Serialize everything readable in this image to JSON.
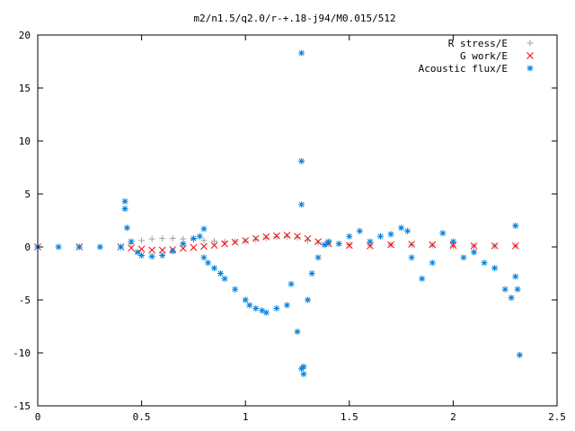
{
  "chart_data": {
    "type": "scatter",
    "title": "m2/n1.5/q2.0/r-+.18-j94/M0.015/512",
    "xlabel": "",
    "ylabel": "",
    "xlim": [
      0,
      2.5
    ],
    "ylim": [
      -15,
      20
    ],
    "xticks": [
      "0",
      "0.5",
      "1",
      "1.5",
      "2",
      "2.5"
    ],
    "yticks": [
      "-15",
      "-10",
      "-5",
      "0",
      "5",
      "10",
      "15",
      "20"
    ],
    "grid": false,
    "legend_position": "top-right",
    "series": [
      {
        "name": "R stress/E",
        "marker": "+",
        "color": "#a0a0a0",
        "x": [
          0.0,
          0.2,
          0.4,
          0.45,
          0.5,
          0.55,
          0.6,
          0.65,
          0.7,
          0.75,
          0.8,
          0.85,
          0.9,
          0.95,
          1.0,
          1.05,
          1.1,
          1.15,
          1.2,
          1.25,
          1.3,
          1.35,
          1.4,
          1.5,
          1.6,
          1.7,
          1.8,
          1.9,
          2.0,
          2.1,
          2.2,
          2.3
        ],
        "y": [
          0,
          0,
          0,
          0.3,
          0.6,
          0.75,
          0.8,
          0.8,
          0.75,
          0.7,
          0.6,
          0.55,
          0.5,
          0.5,
          0.55,
          0.7,
          0.85,
          0.95,
          1.0,
          0.9,
          0.6,
          0.4,
          0.3,
          0.2,
          0.15,
          0.2,
          0.2,
          0.15,
          0.1,
          0.1,
          0.1,
          0.1
        ]
      },
      {
        "name": "G work/E",
        "marker": "x",
        "color": "#ff0000",
        "x": [
          0.0,
          0.2,
          0.4,
          0.45,
          0.5,
          0.55,
          0.6,
          0.65,
          0.7,
          0.75,
          0.8,
          0.85,
          0.9,
          0.95,
          1.0,
          1.05,
          1.1,
          1.15,
          1.2,
          1.25,
          1.3,
          1.35,
          1.4,
          1.5,
          1.6,
          1.7,
          1.8,
          1.9,
          2.0,
          2.1,
          2.2,
          2.3
        ],
        "y": [
          0,
          0,
          0,
          -0.1,
          -0.2,
          -0.3,
          -0.3,
          -0.25,
          -0.15,
          -0.05,
          0.05,
          0.15,
          0.3,
          0.45,
          0.6,
          0.8,
          0.95,
          1.05,
          1.1,
          1.0,
          0.8,
          0.5,
          0.3,
          0.15,
          0.1,
          0.2,
          0.25,
          0.2,
          0.15,
          0.1,
          0.1,
          0.1
        ]
      },
      {
        "name": "Acoustic flux/E",
        "marker": "*",
        "color": "#0080e0",
        "x": [
          0.0,
          0.1,
          0.2,
          0.3,
          0.4,
          0.42,
          0.42,
          0.43,
          0.45,
          0.48,
          0.5,
          0.55,
          0.6,
          0.65,
          0.7,
          0.75,
          0.78,
          0.8,
          0.8,
          0.82,
          0.85,
          0.88,
          0.9,
          0.95,
          1.0,
          1.02,
          1.05,
          1.08,
          1.1,
          1.15,
          1.2,
          1.22,
          1.25,
          1.27,
          1.27,
          1.27,
          1.27,
          1.28,
          1.28,
          1.3,
          1.32,
          1.35,
          1.38,
          1.4,
          1.45,
          1.5,
          1.55,
          1.6,
          1.65,
          1.7,
          1.75,
          1.78,
          1.8,
          1.85,
          1.9,
          1.95,
          2.0,
          2.05,
          2.1,
          2.15,
          2.2,
          2.25,
          2.28,
          2.3,
          2.3,
          2.31,
          2.32
        ],
        "y": [
          0,
          0,
          0,
          0,
          0,
          4.3,
          3.6,
          1.8,
          0.5,
          -0.5,
          -0.8,
          -0.9,
          -0.8,
          -0.4,
          0.3,
          0.8,
          1.0,
          1.7,
          -1.0,
          -1.5,
          -2.0,
          -2.5,
          -3.0,
          -4.0,
          -5.0,
          -5.5,
          -5.8,
          -6.0,
          -6.2,
          -5.8,
          -5.5,
          -3.5,
          -8.0,
          18.3,
          8.1,
          4.0,
          -11.5,
          -12.0,
          -11.3,
          -5.0,
          -2.5,
          -1.0,
          0.2,
          0.5,
          0.3,
          1.0,
          1.5,
          0.5,
          1.0,
          1.2,
          1.8,
          1.5,
          -1.0,
          -3.0,
          -1.5,
          1.3,
          0.5,
          -1.0,
          -0.5,
          -1.5,
          -2.0,
          -4.0,
          -4.8,
          2.0,
          -2.8,
          -4.0,
          -10.2
        ]
      }
    ]
  }
}
